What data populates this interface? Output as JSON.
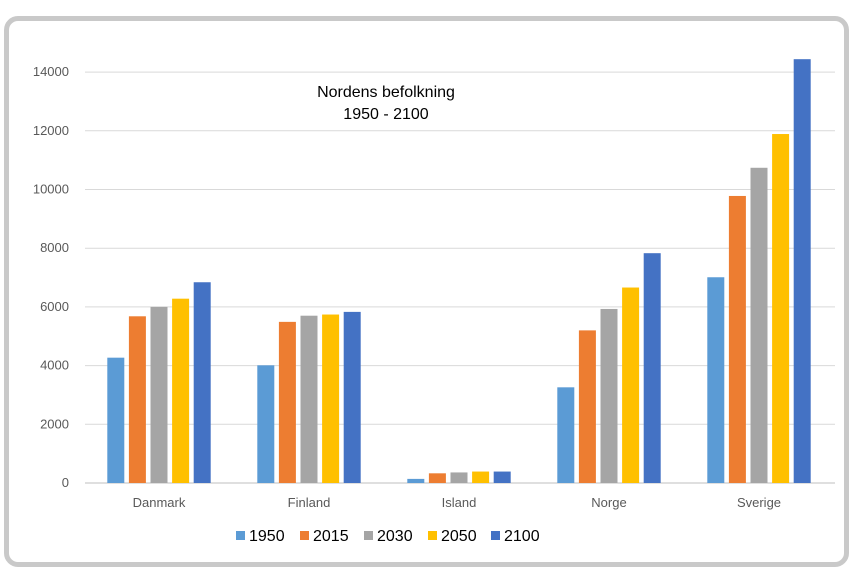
{
  "chart_data": {
    "type": "bar",
    "title": "Nordens befolkning",
    "subtitle": "1950 - 2100",
    "categories": [
      "Danmark",
      "Finland",
      "Island",
      "Norge",
      "Sverige"
    ],
    "series": [
      {
        "name": "1950",
        "color": "#5b9bd5",
        "values": [
          4270,
          4010,
          140,
          3260,
          7010
        ]
      },
      {
        "name": "2015",
        "color": "#ed7d31",
        "values": [
          5680,
          5490,
          330,
          5200,
          9780
        ]
      },
      {
        "name": "2030",
        "color": "#a5a5a5",
        "values": [
          6000,
          5700,
          360,
          5930,
          10740
        ]
      },
      {
        "name": "2050",
        "color": "#ffc000",
        "values": [
          6280,
          5740,
          390,
          6660,
          11890
        ]
      },
      {
        "name": "2100",
        "color": "#4472c4",
        "values": [
          6840,
          5830,
          390,
          7830,
          14440
        ]
      }
    ],
    "yticks": [
      0,
      2000,
      4000,
      6000,
      8000,
      10000,
      12000,
      14000
    ],
    "ylim": [
      0,
      14500
    ],
    "grid": true,
    "legend": "bottom"
  }
}
